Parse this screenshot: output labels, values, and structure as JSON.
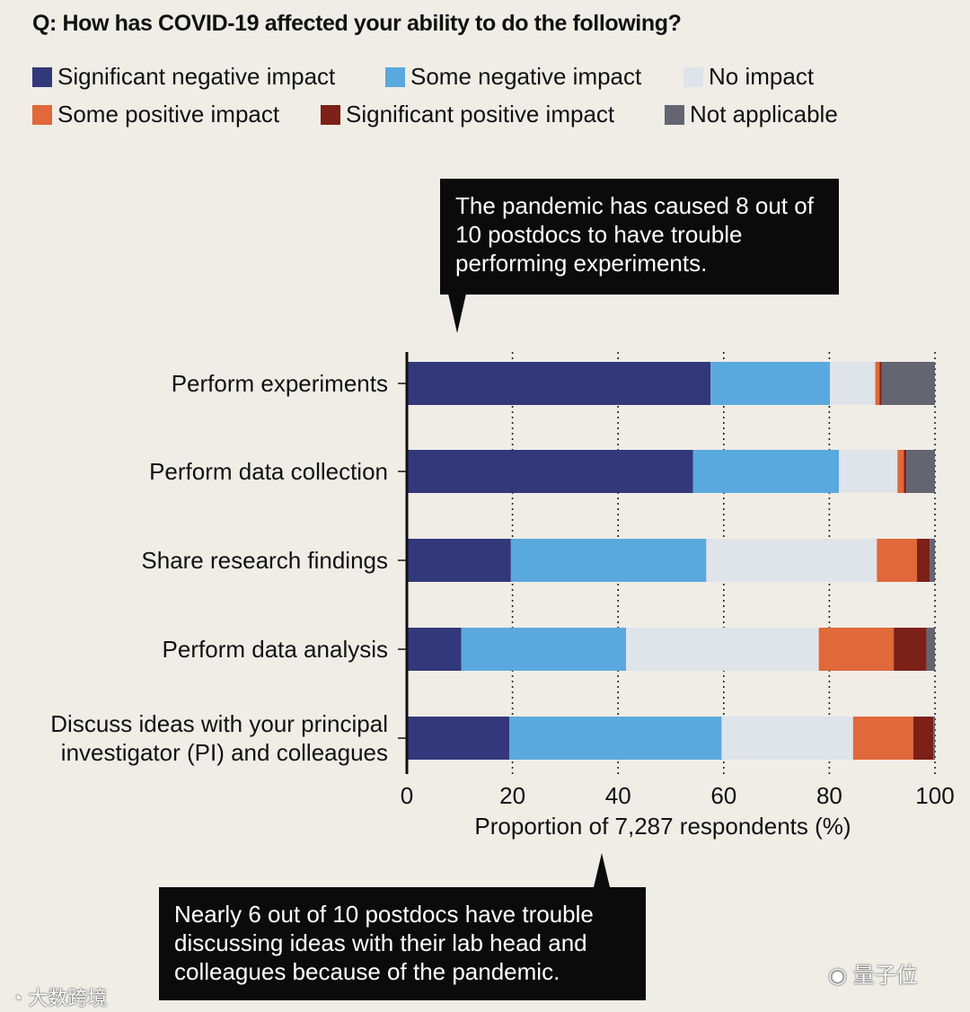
{
  "title": "Q: How has COVID-19 affected your ability to do the following?",
  "legend": [
    {
      "label": "Significant negative impact",
      "color": "#32387a"
    },
    {
      "label": "Some negative impact",
      "color": "#5aa9de"
    },
    {
      "label": "No impact",
      "color": "#dfe3ea"
    },
    {
      "label": "Some positive impact",
      "color": "#e0683a"
    },
    {
      "label": "Significant positive impact",
      "color": "#7c2018"
    },
    {
      "label": "Not applicable",
      "color": "#636671"
    }
  ],
  "callouts": {
    "top": "The pandemic has caused 8 out of 10 postdocs to have trouble performing experiments.",
    "bottom": "Nearly 6 out of 10 postdocs have trouble discussing ideas with their lab head and colleagues because of the pandemic."
  },
  "watermarks": {
    "left": "大数跨境",
    "right": "量子位"
  },
  "chart_data": {
    "type": "bar",
    "orientation": "horizontal",
    "stacked": true,
    "categories": [
      "Perform experiments",
      "Perform data collection",
      "Share research findings",
      "Perform data analysis",
      "Discuss ideas with your principal investigator (PI) and colleagues"
    ],
    "category_lines": [
      [
        "Perform experiments"
      ],
      [
        "Perform data collection"
      ],
      [
        "Share research findings"
      ],
      [
        "Perform data analysis"
      ],
      [
        "Discuss ideas with your principal",
        "investigator (PI) and colleagues"
      ]
    ],
    "series": [
      {
        "name": "Significant negative impact",
        "values": [
          57.5,
          54.2,
          19.7,
          10.3,
          19.4
        ]
      },
      {
        "name": "Some negative impact",
        "values": [
          22.6,
          27.6,
          37.0,
          31.2,
          40.2
        ]
      },
      {
        "name": "No impact",
        "values": [
          8.6,
          11.1,
          32.3,
          36.5,
          24.9
        ]
      },
      {
        "name": "Some positive impact",
        "values": [
          0.8,
          1.2,
          7.6,
          14.2,
          11.4
        ]
      },
      {
        "name": "Significant positive impact",
        "values": [
          0.4,
          0.5,
          2.4,
          6.2,
          3.8
        ]
      },
      {
        "name": "Not applicable",
        "values": [
          10.1,
          5.4,
          1.0,
          1.6,
          0.3
        ]
      }
    ],
    "xlim": [
      0,
      100
    ],
    "xticks": [
      0,
      20,
      40,
      60,
      80,
      100
    ],
    "xlabel": "Proportion of 7,287 respondents (%)",
    "grid": "vertical dotted"
  }
}
